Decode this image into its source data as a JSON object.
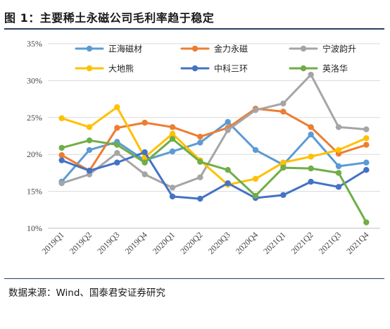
{
  "header": {
    "title": "图 1：主要稀土永磁公司毛利率趋于稳定"
  },
  "footer": {
    "source": "数据来源：Wind、国泰君安证券研究"
  },
  "chart_data": {
    "type": "line",
    "categories": [
      "2019Q1",
      "2019Q2",
      "2019Q3",
      "2019Q4",
      "2020Q1",
      "2020Q2",
      "2020Q3",
      "2020Q4",
      "2021Q1",
      "2021Q2",
      "2021Q3",
      "2021Q4"
    ],
    "ylim": [
      0.1,
      0.35
    ],
    "yticks": [
      0.1,
      0.15,
      0.2,
      0.25,
      0.3,
      0.35
    ],
    "ytick_labels": [
      "10%",
      "15%",
      "20%",
      "25%",
      "30%",
      "35%"
    ],
    "grid": true,
    "legend_position": "top",
    "series": [
      {
        "name": "正海磁材",
        "color": "#5b9bd5",
        "values": [
          0.163,
          0.206,
          0.217,
          0.192,
          0.204,
          0.216,
          0.244,
          0.206,
          0.186,
          0.227,
          0.184,
          0.189
        ]
      },
      {
        "name": "金力永磁",
        "color": "#ed7d31",
        "values": [
          0.199,
          0.178,
          0.236,
          0.243,
          0.237,
          0.224,
          0.236,
          0.262,
          0.258,
          0.237,
          0.201,
          0.213
        ]
      },
      {
        "name": "宁波韵升",
        "color": "#a5a5a5",
        "values": [
          0.161,
          0.173,
          0.202,
          0.173,
          0.155,
          0.169,
          0.233,
          0.26,
          0.269,
          0.308,
          0.237,
          0.234
        ]
      },
      {
        "name": "大地熊",
        "color": "#ffc000",
        "values": [
          0.249,
          0.237,
          0.264,
          0.196,
          0.228,
          0.192,
          0.159,
          0.167,
          0.189,
          0.197,
          0.206,
          0.222
        ]
      },
      {
        "name": "中科三环",
        "color": "#4472c4",
        "values": [
          0.192,
          0.178,
          0.189,
          0.203,
          0.143,
          0.14,
          0.161,
          0.141,
          0.145,
          0.163,
          0.156,
          0.179
        ]
      },
      {
        "name": "英洛华",
        "color": "#70ad47",
        "values": [
          0.209,
          0.219,
          0.213,
          0.189,
          0.221,
          0.19,
          0.179,
          0.144,
          0.182,
          0.181,
          0.175,
          0.108
        ]
      }
    ]
  }
}
